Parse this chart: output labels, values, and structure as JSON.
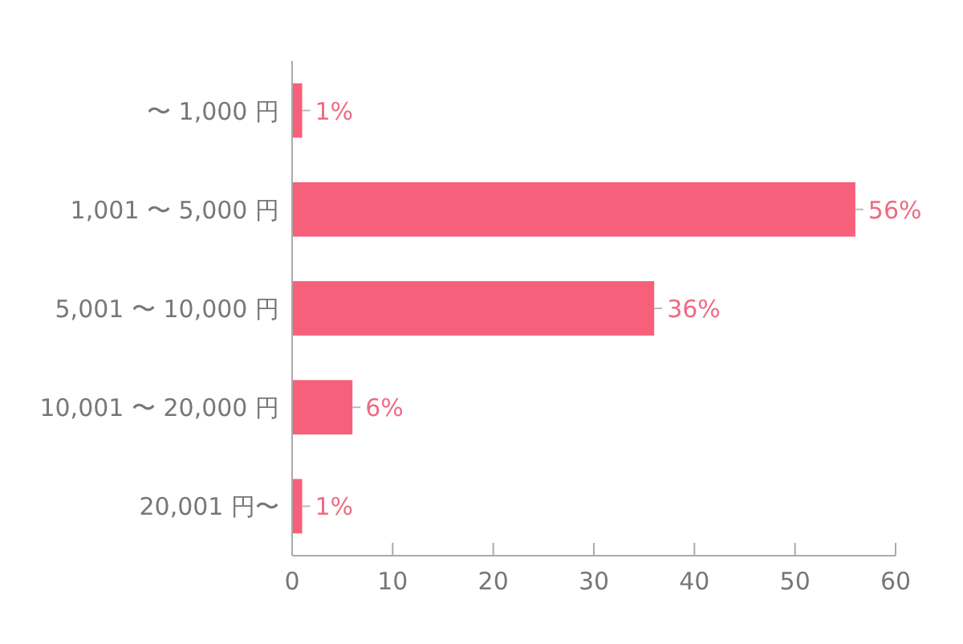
{
  "chart_data": {
    "type": "bar",
    "orientation": "horizontal",
    "categories": [
      "〜 1,000 円",
      "1,001 〜 5,000 円",
      "5,001 〜 10,000 円",
      "10,001 〜 20,000 円",
      "20,001 円〜"
    ],
    "values": [
      1,
      56,
      36,
      6,
      1
    ],
    "value_labels": [
      "1%",
      "56%",
      "36%",
      "6%",
      "1%"
    ],
    "color": "#f6607a",
    "xlim": [
      0,
      60
    ],
    "xticks": [
      0,
      10,
      20,
      30,
      40,
      50,
      60
    ]
  }
}
